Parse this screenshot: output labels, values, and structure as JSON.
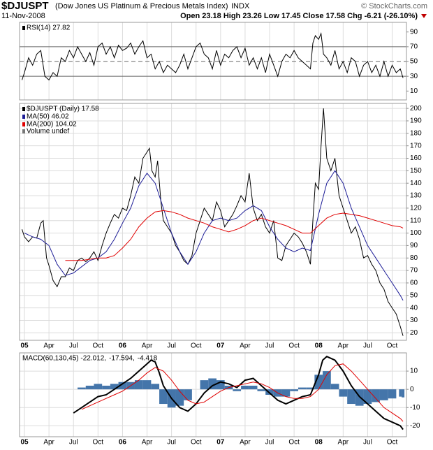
{
  "header": {
    "symbol": "$DJUSPT",
    "name": "(Dow Jones US Platinum & Precious Metals Index)",
    "exchange": "INDX",
    "copyright": "© StockCharts.com",
    "date": "11-Nov-2008",
    "quote": "Open 23.18 High 23.26 Low 17.45 Close 17.58 Chg -6.21 (-26.10%)"
  },
  "chart_data": [
    {
      "type": "line",
      "xlim": [
        -0.6,
        46.75
      ],
      "ylim": [
        -2,
        103
      ],
      "yticks": [
        90,
        70,
        50,
        30,
        10
      ],
      "hlines": [
        {
          "value": 70,
          "dashed": false
        },
        {
          "value": 50,
          "dashed": true
        },
        {
          "value": 30,
          "dashed": false
        }
      ],
      "series": [
        {
          "name": "RSI(14) 27.82",
          "color": "#000000",
          "x": [
            -0.3,
            0,
            0.5,
            1,
            1.5,
            2,
            2.5,
            3,
            3.5,
            4,
            4.5,
            5,
            5.5,
            6,
            6.5,
            7,
            7.5,
            8,
            8.5,
            9,
            9.5,
            10,
            10.5,
            11,
            11.5,
            12,
            12.5,
            13,
            13.5,
            14,
            14.5,
            15,
            15.5,
            16,
            16.5,
            17,
            17.5,
            18,
            18.5,
            19,
            19.5,
            20,
            20.5,
            21,
            21.5,
            22,
            22.5,
            23,
            23.5,
            24,
            24.5,
            25,
            25.5,
            26,
            26.5,
            27,
            27.5,
            28,
            28.5,
            29,
            29.5,
            30,
            30.5,
            31,
            31.5,
            32,
            32.5,
            33,
            33.5,
            34,
            34.5,
            35,
            35.3,
            35.6,
            36,
            36.3,
            36.6,
            37,
            37.5,
            38,
            38.5,
            39,
            39.5,
            40,
            40.5,
            41,
            41.5,
            42,
            42.5,
            43,
            43.5,
            44,
            44.5,
            45,
            45.5,
            46,
            46.33
          ],
          "values": [
            25,
            35,
            55,
            45,
            60,
            65,
            30,
            25,
            35,
            30,
            55,
            50,
            65,
            55,
            70,
            60,
            50,
            62,
            45,
            70,
            75,
            60,
            70,
            55,
            72,
            65,
            68,
            75,
            60,
            70,
            78,
            55,
            60,
            40,
            50,
            35,
            45,
            40,
            35,
            45,
            60,
            40,
            55,
            70,
            75,
            60,
            55,
            40,
            65,
            45,
            60,
            55,
            65,
            70,
            55,
            68,
            45,
            55,
            40,
            55,
            35,
            60,
            45,
            30,
            50,
            60,
            55,
            65,
            55,
            50,
            45,
            40,
            75,
            85,
            80,
            88,
            60,
            55,
            45,
            65,
            40,
            50,
            35,
            55,
            50,
            30,
            45,
            50,
            35,
            45,
            30,
            50,
            30,
            45,
            35,
            40,
            27.82
          ]
        }
      ]
    },
    {
      "type": "line",
      "xlim": [
        -0.6,
        46.75
      ],
      "ylim": [
        14,
        204
      ],
      "xticks": [
        {
          "value": 0,
          "label": "05"
        },
        {
          "value": 3,
          "label": "Apr"
        },
        {
          "value": 6,
          "label": "Jul"
        },
        {
          "value": 9,
          "label": "Oct"
        },
        {
          "value": 12,
          "label": "06"
        },
        {
          "value": 15,
          "label": "Apr"
        },
        {
          "value": 18,
          "label": "Jul"
        },
        {
          "value": 21,
          "label": "Oct"
        },
        {
          "value": 24,
          "label": "07"
        },
        {
          "value": 27,
          "label": "Apr"
        },
        {
          "value": 30,
          "label": "Jul"
        },
        {
          "value": 33,
          "label": "Oct"
        },
        {
          "value": 36,
          "label": "08"
        },
        {
          "value": 39,
          "label": "Apr"
        },
        {
          "value": 42,
          "label": "Jul"
        },
        {
          "value": 45,
          "label": "Oct"
        }
      ],
      "yticks": [
        200,
        190,
        180,
        170,
        160,
        150,
        140,
        130,
        120,
        110,
        100,
        90,
        80,
        70,
        60,
        50,
        40,
        30,
        20
      ],
      "grid": true,
      "volume_label": "Volume undef",
      "series": [
        {
          "name": "$DJUSPT (Daily) 17.58",
          "color": "#000000",
          "x": [
            -0.3,
            0,
            0.5,
            1,
            1.5,
            2,
            2.3,
            2.7,
            3,
            3.5,
            4,
            4.5,
            5,
            5.5,
            6,
            6.5,
            7,
            7.5,
            8,
            8.5,
            9,
            9.5,
            10,
            10.5,
            11,
            11.5,
            12,
            12.5,
            13,
            13.5,
            14,
            14.5,
            15,
            15.3,
            15.6,
            16,
            16.3,
            16.7,
            17,
            17.5,
            18,
            18.5,
            19,
            19.5,
            20,
            20.5,
            21,
            21.5,
            22,
            22.5,
            23,
            23.5,
            24,
            24.5,
            25,
            25.5,
            26,
            26.5,
            27,
            27.5,
            28,
            28.5,
            29,
            29.5,
            30,
            30.5,
            31,
            31.5,
            32,
            32.5,
            33,
            33.5,
            34,
            34.5,
            35,
            35.3,
            35.6,
            36,
            36.3,
            36.6,
            37,
            37.5,
            38,
            38.5,
            39,
            39.5,
            40,
            40.5,
            41,
            41.5,
            42,
            42.5,
            43,
            43.5,
            44,
            44.5,
            45,
            45.5,
            46,
            46.33
          ],
          "values": [
            103,
            97,
            93,
            97,
            96,
            108,
            110,
            80,
            74,
            62,
            57,
            65,
            65,
            72,
            70,
            78,
            80,
            77,
            80,
            85,
            78,
            90,
            100,
            108,
            115,
            112,
            120,
            118,
            130,
            145,
            140,
            160,
            165,
            168,
            150,
            145,
            158,
            125,
            110,
            105,
            100,
            90,
            85,
            78,
            75,
            82,
            100,
            110,
            120,
            115,
            110,
            125,
            118,
            105,
            110,
            115,
            122,
            130,
            125,
            148,
            120,
            110,
            115,
            105,
            100,
            110,
            80,
            78,
            90,
            95,
            100,
            97,
            92,
            85,
            75,
            110,
            140,
            135,
            170,
            200,
            160,
            150,
            160,
            130,
            120,
            110,
            100,
            105,
            95,
            80,
            82,
            75,
            70,
            60,
            55,
            45,
            40,
            35,
            25,
            17.58
          ]
        },
        {
          "name": "MA(50) 46.02",
          "color": "#1c1c96",
          "x": [
            0,
            1,
            2,
            3,
            4,
            5,
            6,
            7,
            8,
            9,
            10,
            11,
            12,
            13,
            14,
            15,
            16,
            17,
            18,
            19,
            20,
            21,
            22,
            23,
            24,
            25,
            26,
            27,
            28,
            29,
            30,
            31,
            32,
            33,
            34,
            35,
            36,
            37,
            38,
            39,
            40,
            41,
            42,
            43,
            44,
            45,
            46,
            46.33
          ],
          "values": [
            100,
            97,
            95,
            90,
            75,
            66,
            68,
            73,
            78,
            80,
            85,
            95,
            108,
            120,
            138,
            148,
            140,
            120,
            100,
            85,
            75,
            85,
            100,
            110,
            112,
            110,
            112,
            118,
            122,
            118,
            105,
            95,
            88,
            85,
            88,
            86,
            115,
            140,
            150,
            140,
            120,
            105,
            90,
            80,
            70,
            60,
            50,
            46.02
          ]
        },
        {
          "name": "MA(200) 104.02",
          "color": "#e00000",
          "x": [
            5,
            6,
            7,
            8,
            9,
            10,
            11,
            12,
            13,
            14,
            15,
            16,
            17,
            18,
            19,
            20,
            21,
            22,
            23,
            24,
            25,
            26,
            27,
            28,
            29,
            30,
            31,
            32,
            33,
            34,
            35,
            36,
            37,
            38,
            39,
            40,
            41,
            42,
            43,
            44,
            45,
            46,
            46.33
          ],
          "values": [
            78,
            78,
            78,
            79,
            80,
            80,
            82,
            88,
            95,
            105,
            112,
            117,
            118,
            117,
            115,
            112,
            110,
            108,
            105,
            103,
            101,
            103,
            106,
            110,
            112,
            110,
            108,
            106,
            103,
            100,
            100,
            106,
            112,
            115,
            116,
            115,
            114,
            112,
            110,
            108,
            106,
            105,
            104.02
          ]
        }
      ]
    },
    {
      "type": "line",
      "xlim": [
        -0.6,
        46.75
      ],
      "ylim": [
        -26,
        20
      ],
      "xticks": [
        {
          "value": 0,
          "label": "05"
        },
        {
          "value": 3,
          "label": "Apr"
        },
        {
          "value": 6,
          "label": "Jul"
        },
        {
          "value": 9,
          "label": "Oct"
        },
        {
          "value": 12,
          "label": "06"
        },
        {
          "value": 15,
          "label": "Apr"
        },
        {
          "value": 18,
          "label": "Jul"
        },
        {
          "value": 21,
          "label": "Oct"
        },
        {
          "value": 24,
          "label": "07"
        },
        {
          "value": 27,
          "label": "Apr"
        },
        {
          "value": 30,
          "label": "Jul"
        },
        {
          "value": 33,
          "label": "Oct"
        },
        {
          "value": 36,
          "label": "08"
        },
        {
          "value": 39,
          "label": "Apr"
        },
        {
          "value": 42,
          "label": "Jul"
        },
        {
          "value": 45,
          "label": "Oct"
        }
      ],
      "yticks": [
        10,
        0,
        -10,
        -20
      ],
      "grid": true,
      "series": [
        {
          "name": "-4.418",
          "color": "#3a6ea5",
          "kind": "bar",
          "x": [
            7,
            8,
            9,
            10,
            11,
            12,
            13,
            14,
            15,
            16,
            17,
            18,
            19,
            20,
            21,
            22,
            23,
            24,
            25,
            26,
            27,
            28,
            29,
            30,
            31,
            32,
            33,
            34,
            35,
            36,
            37,
            38,
            39,
            40,
            41,
            42,
            43,
            44,
            45,
            46,
            46.33
          ],
          "values": [
            1,
            2,
            3,
            2,
            3,
            4,
            4,
            5,
            5,
            3,
            -8,
            -10,
            -9,
            -6,
            0,
            5,
            6,
            5,
            2,
            -1,
            2,
            2,
            -1,
            -3,
            -4,
            -4,
            -1,
            1,
            1,
            8,
            10,
            3,
            -4,
            -8,
            -9,
            -8,
            -7,
            -6,
            -5,
            -4,
            -4.418
          ]
        },
        {
          "name": "MACD(60,130,45) -22.012,",
          "color": "#000000",
          "width": 2,
          "x": [
            6,
            7,
            8,
            9,
            10,
            11,
            12,
            13,
            14,
            15,
            15.5,
            16,
            16.5,
            17,
            18,
            19,
            20,
            21,
            22,
            23,
            24,
            25,
            26,
            27,
            28,
            29,
            30,
            31,
            32,
            33,
            34,
            35,
            36,
            36.5,
            37,
            38,
            39,
            40,
            41,
            42,
            43,
            44,
            45,
            46,
            46.33
          ],
          "values": [
            -13,
            -10,
            -7,
            -4,
            -3,
            0,
            3,
            6,
            10,
            14,
            16,
            15,
            9,
            2,
            -5,
            -10,
            -12,
            -8,
            -2,
            2,
            4,
            3,
            1,
            5,
            6,
            2,
            -2,
            -6,
            -8,
            -6,
            -4,
            -3,
            8,
            16,
            18,
            16,
            10,
            2,
            -4,
            -8,
            -12,
            -16,
            -18,
            -20,
            -22.012
          ]
        },
        {
          "name": "-17.594,",
          "color": "#e00000",
          "x": [
            7,
            8,
            9,
            10,
            11,
            12,
            13,
            14,
            15,
            16,
            17,
            18,
            19,
            20,
            21,
            22,
            23,
            24,
            25,
            26,
            27,
            28,
            29,
            30,
            31,
            32,
            33,
            34,
            35,
            36,
            37,
            38,
            39,
            40,
            41,
            42,
            43,
            44,
            45,
            46,
            46.33
          ],
          "values": [
            -11,
            -9,
            -7,
            -5,
            -3,
            -1,
            2,
            5,
            9,
            12,
            10,
            5,
            -1,
            -6,
            -8,
            -7,
            -4,
            -1,
            1,
            2,
            3,
            4,
            3,
            1,
            -2,
            -4,
            -5,
            -5,
            -4,
            0,
            8,
            13,
            14,
            10,
            5,
            0,
            -5,
            -10,
            -13,
            -16,
            -17.594
          ]
        }
      ]
    }
  ]
}
